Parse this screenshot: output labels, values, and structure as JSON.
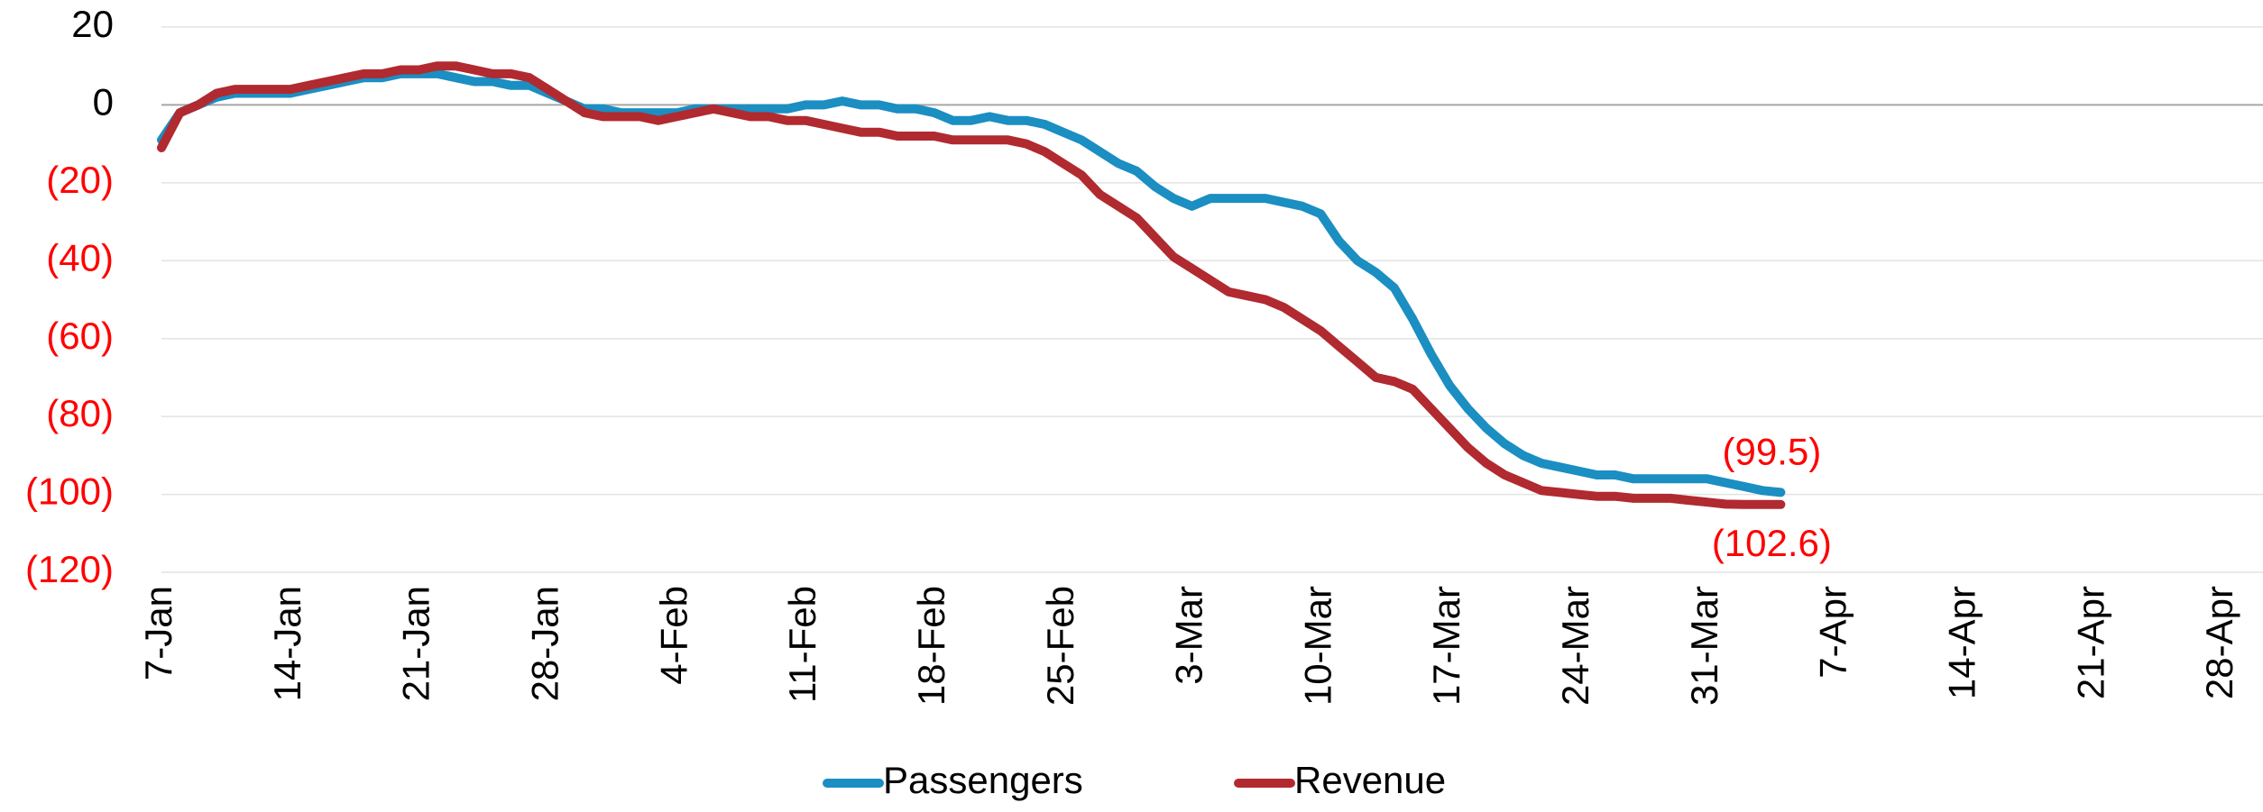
{
  "chart_data": {
    "type": "line",
    "categories": [
      "7-Jan",
      null,
      null,
      null,
      null,
      null,
      null,
      "14-Jan",
      null,
      null,
      null,
      null,
      null,
      null,
      "21-Jan",
      null,
      null,
      null,
      null,
      null,
      null,
      "28-Jan",
      null,
      null,
      null,
      null,
      null,
      null,
      "4-Feb",
      null,
      null,
      null,
      null,
      null,
      null,
      "11-Feb",
      null,
      null,
      null,
      null,
      null,
      null,
      "18-Feb",
      null,
      null,
      null,
      null,
      null,
      null,
      "25-Feb",
      null,
      null,
      null,
      null,
      null,
      null,
      "3-Mar",
      null,
      null,
      null,
      null,
      null,
      null,
      "10-Mar",
      null,
      null,
      null,
      null,
      null,
      null,
      "17-Mar",
      null,
      null,
      null,
      null,
      null,
      null,
      "24-Mar",
      null,
      null,
      null,
      null,
      null,
      null,
      "31-Mar",
      null,
      null,
      null,
      null,
      null,
      null,
      "7-Apr",
      null,
      null,
      null,
      null,
      null,
      null,
      "14-Apr",
      null,
      null,
      null,
      null,
      null,
      null,
      "21-Apr",
      null,
      null,
      null,
      null,
      null,
      null,
      "28-Apr"
    ],
    "series": [
      {
        "name": "Passengers",
        "color": "#1b8ec2",
        "values": [
          -9,
          -2,
          0,
          2,
          3,
          3,
          3,
          3,
          4,
          5,
          6,
          7,
          7,
          8,
          8,
          8,
          7,
          6,
          6,
          5,
          5,
          3,
          1,
          -1,
          -1,
          -2,
          -2,
          -2,
          -2,
          -1,
          -1,
          -1,
          -1,
          -1,
          -1,
          0,
          0,
          1,
          0,
          0,
          -1,
          -1,
          -2,
          -4,
          -4,
          -3,
          -4,
          -4,
          -5,
          -7,
          -9,
          -12,
          -15,
          -17,
          -21,
          -24,
          -26,
          -24,
          -24,
          -24,
          -24,
          -25,
          -26,
          -28,
          -35,
          -40,
          -43,
          -47,
          -55,
          -64,
          -72,
          -78,
          -83,
          -87,
          -90,
          -92,
          -93,
          -94,
          -95,
          -95,
          -96,
          -96,
          -96,
          -96,
          -96,
          -97,
          -98,
          -99,
          -99.5,
          null,
          null,
          null,
          null,
          null,
          null,
          null,
          null,
          null,
          null,
          null,
          null,
          null,
          null,
          null,
          null,
          null,
          null,
          null,
          null,
          null,
          null,
          null,
          null
        ],
        "value_labels": [
          null,
          null,
          null,
          null,
          null,
          null,
          null,
          null,
          null,
          null,
          null,
          null,
          null,
          null,
          null,
          null,
          null,
          null,
          null,
          null,
          null,
          null,
          null,
          null,
          null,
          null,
          null,
          null,
          null,
          null,
          null,
          null,
          null,
          null,
          null,
          null,
          null,
          null,
          null,
          null,
          null,
          null,
          null,
          null,
          null,
          null,
          null,
          null,
          null,
          null,
          null,
          null,
          null,
          null,
          null,
          null,
          null,
          null,
          null,
          null,
          null,
          null,
          null,
          null,
          null,
          null,
          null,
          null,
          null,
          null,
          null,
          null,
          null,
          null,
          null,
          null,
          null,
          null,
          null,
          null,
          null,
          null,
          null,
          null,
          null,
          null,
          null,
          null,
          "(99.5)",
          null,
          null,
          null,
          null,
          null,
          null,
          null,
          null,
          null,
          null,
          null,
          null,
          null,
          null,
          null,
          null,
          null,
          null,
          null,
          null,
          null,
          null,
          null,
          null
        ]
      },
      {
        "name": "Revenue",
        "color": "#b02a30",
        "values": [
          -11,
          -2,
          0,
          3,
          4,
          4,
          4,
          4,
          5,
          6,
          7,
          8,
          8,
          9,
          9,
          10,
          10,
          9,
          8,
          8,
          7,
          4,
          1,
          -2,
          -3,
          -3,
          -3,
          -4,
          -3,
          -2,
          -1,
          -2,
          -3,
          -3,
          -4,
          -4,
          -5,
          -6,
          -7,
          -7,
          -8,
          -8,
          -8,
          -9,
          -9,
          -9,
          -9,
          -10,
          -12,
          -15,
          -18,
          -23,
          -26,
          -29,
          -34,
          -39,
          -42,
          -45,
          -48,
          -49,
          -50,
          -52,
          -55,
          -58,
          -62,
          -66,
          -70,
          -71,
          -73,
          -78,
          -83,
          -88,
          -92,
          -95,
          -97,
          -99,
          -99.5,
          -100,
          -100.5,
          -100.5,
          -101,
          -101,
          -101,
          -101.5,
          -102,
          -102.5,
          -102.6,
          -102.6,
          -102.6,
          null,
          null,
          null,
          null,
          null,
          null,
          null,
          null,
          null,
          null,
          null,
          null,
          null,
          null,
          null,
          null,
          null,
          null,
          null,
          null,
          null,
          null,
          null,
          null
        ],
        "value_labels": [
          null,
          null,
          null,
          null,
          null,
          null,
          null,
          null,
          null,
          null,
          null,
          null,
          null,
          null,
          null,
          null,
          null,
          null,
          null,
          null,
          null,
          null,
          null,
          null,
          null,
          null,
          null,
          null,
          null,
          null,
          null,
          null,
          null,
          null,
          null,
          null,
          null,
          null,
          null,
          null,
          null,
          null,
          null,
          null,
          null,
          null,
          null,
          null,
          null,
          null,
          null,
          null,
          null,
          null,
          null,
          null,
          null,
          null,
          null,
          null,
          null,
          null,
          null,
          null,
          null,
          null,
          null,
          null,
          null,
          null,
          null,
          null,
          null,
          null,
          null,
          null,
          null,
          null,
          null,
          null,
          null,
          null,
          null,
          null,
          null,
          null,
          null,
          null,
          "(102.6)",
          null,
          null,
          null,
          null,
          null,
          null,
          null,
          null,
          null,
          null,
          null,
          null,
          null,
          null,
          null,
          null,
          null,
          null,
          null,
          null,
          null,
          null,
          null,
          null
        ]
      }
    ],
    "ylim": [
      -120,
      20
    ],
    "yticks": [
      20,
      0,
      {
        "value": -20,
        "label": "(20)"
      },
      {
        "value": -40,
        "label": "(40)"
      },
      {
        "value": -60,
        "label": "(60)"
      },
      {
        "value": -80,
        "label": "(80)"
      },
      {
        "value": -100,
        "label": "(100)"
      },
      {
        "value": -120,
        "label": "(120)"
      }
    ],
    "grid": true,
    "negative_label_color": "#ff0000",
    "legend": "bottom"
  }
}
